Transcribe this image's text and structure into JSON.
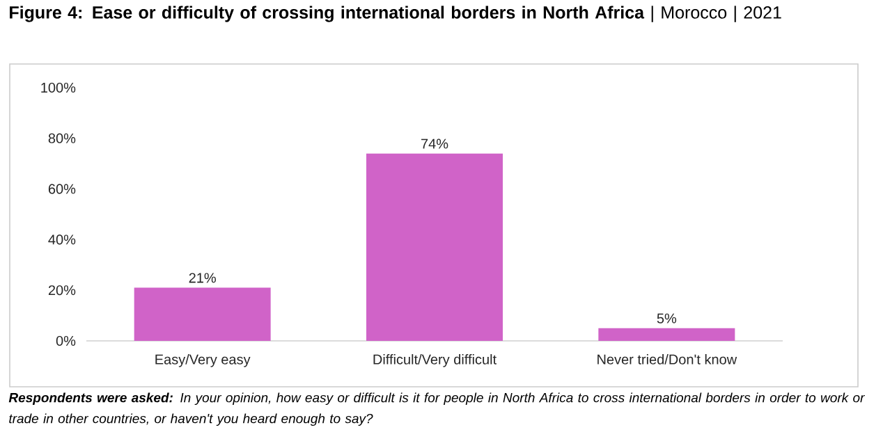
{
  "chart_data": {
    "type": "bar",
    "title": "**Figure 4: Ease or difficulty of crossing international borders in North Africa** | Morocco | 2021",
    "categories": [
      "Easy/Very easy",
      "Difficult/Very difficult",
      "Never tried/Don't know"
    ],
    "values": [
      21,
      74,
      5
    ],
    "color": "#d063c8",
    "ylim": [
      0,
      100
    ],
    "yticks": [
      {
        "value": 0,
        "label": "0%"
      },
      {
        "value": 20,
        "label": "20%"
      },
      {
        "value": 40,
        "label": "40%"
      },
      {
        "value": 60,
        "label": "60%"
      },
      {
        "value": 80,
        "label": "80%"
      },
      {
        "value": 100,
        "label": "100%"
      }
    ],
    "value_labels": [
      "21%",
      "74%",
      "5%"
    ],
    "annotations": [
      "**Respondents were asked:** In your opinion, how easy or difficult is it for people in North Africa to cross international borders in order to work or trade in other countries, or haven't you heard enough to say?"
    ]
  }
}
